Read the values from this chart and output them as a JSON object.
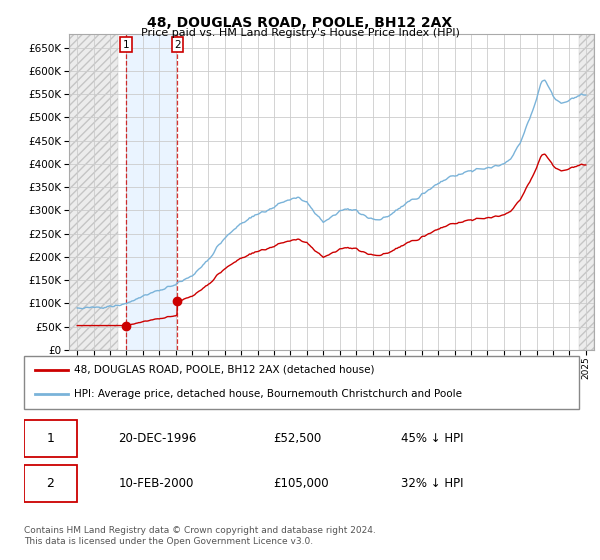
{
  "title": "48, DOUGLAS ROAD, POOLE, BH12 2AX",
  "subtitle": "Price paid vs. HM Land Registry's House Price Index (HPI)",
  "legend_line1": "48, DOUGLAS ROAD, POOLE, BH12 2AX (detached house)",
  "legend_line2": "HPI: Average price, detached house, Bournemouth Christchurch and Poole",
  "table_rows": [
    [
      "1",
      "20-DEC-1996",
      "£52,500",
      "45% ↓ HPI"
    ],
    [
      "2",
      "10-FEB-2000",
      "£105,000",
      "32% ↓ HPI"
    ]
  ],
  "footer": "Contains HM Land Registry data © Crown copyright and database right 2024.\nThis data is licensed under the Open Government Licence v3.0.",
  "ylim": [
    0,
    680000
  ],
  "yticks": [
    0,
    50000,
    100000,
    150000,
    200000,
    250000,
    300000,
    350000,
    400000,
    450000,
    500000,
    550000,
    600000,
    650000
  ],
  "hpi_color": "#7ab3d9",
  "price_color": "#cc0000",
  "sale1_year": 1996.97,
  "sale1_price": 52500,
  "sale2_year": 2000.11,
  "sale2_price": 105000
}
